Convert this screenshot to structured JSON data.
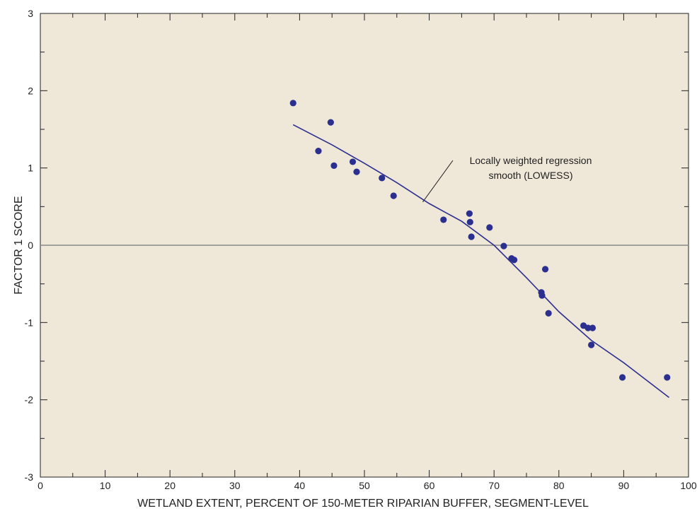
{
  "chart_data": {
    "type": "scatter",
    "title": "",
    "xlabel": "WETLAND EXTENT, PERCENT OF 150-METER RIPARIAN BUFFER, SEGMENT-LEVEL",
    "ylabel": "FACTOR 1 SCORE",
    "xlim": [
      0,
      100
    ],
    "ylim": [
      -3,
      3
    ],
    "x_ticks": [
      0,
      10,
      20,
      30,
      40,
      50,
      60,
      70,
      80,
      90,
      100
    ],
    "y_ticks": [
      -3,
      -2,
      -1,
      0,
      1,
      2,
      3
    ],
    "x_tick_labels": [
      "0",
      "10",
      "20",
      "30",
      "40",
      "50",
      "60",
      "70",
      "80",
      "90",
      "100"
    ],
    "y_tick_labels": [
      "-3",
      "-2",
      "-1",
      "0",
      "1",
      "2",
      "3"
    ],
    "grid": false,
    "reference_line_y": 0,
    "background_color": "#efe7d8",
    "point_color": "#2b2f8f",
    "line_color": "#2b2f8f",
    "reference_line_color": "#8a8a8a",
    "series": [
      {
        "type": "scatter",
        "x": [
          39.0,
          42.9,
          44.8,
          45.3,
          48.2,
          48.8,
          52.7,
          54.5,
          62.2,
          66.2,
          66.3,
          66.5,
          69.3,
          71.5,
          72.7,
          73.1,
          77.3,
          77.4,
          77.9,
          78.4,
          83.8,
          84.5,
          85.2,
          85.0,
          89.8,
          96.7
        ],
        "y": [
          1.84,
          1.22,
          1.59,
          1.03,
          1.08,
          0.95,
          0.87,
          0.64,
          0.33,
          0.41,
          0.3,
          0.11,
          0.23,
          -0.01,
          -0.17,
          -0.19,
          -0.61,
          -0.65,
          -0.31,
          -0.88,
          -1.04,
          -1.07,
          -1.07,
          -1.29,
          -1.71,
          -1.71
        ]
      },
      {
        "type": "line",
        "x": [
          39,
          45,
          50,
          55,
          60,
          65,
          70,
          75,
          80,
          85,
          90,
          97
        ],
        "y": [
          1.56,
          1.3,
          1.06,
          0.81,
          0.54,
          0.31,
          0.0,
          -0.42,
          -0.86,
          -1.23,
          -1.52,
          -1.97
        ]
      }
    ],
    "annotations": [
      {
        "text_lines": [
          "Locally weighted regression",
          "smooth (LOWESS)"
        ],
        "points_to": [
          59,
          0.56
        ]
      }
    ]
  }
}
